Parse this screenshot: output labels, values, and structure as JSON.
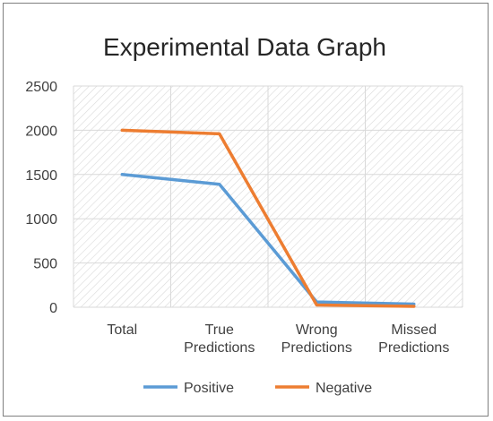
{
  "chart_data": {
    "type": "line",
    "title": "Experimental Data Graph",
    "xlabel": "",
    "ylabel": "",
    "categories": [
      [
        "Total"
      ],
      [
        "True",
        "Predictions"
      ],
      [
        "Wrong",
        "Predictions"
      ],
      [
        "Missed",
        "Predictions"
      ]
    ],
    "series": [
      {
        "name": "Positive",
        "color": "#5b9bd5",
        "values": [
          1500,
          1390,
          60,
          35
        ]
      },
      {
        "name": "Negative",
        "color": "#ed7d31",
        "values": [
          2000,
          1960,
          25,
          10
        ]
      }
    ],
    "ylim": [
      0,
      2500
    ],
    "yticks": [
      0,
      500,
      1000,
      1500,
      2000,
      2500
    ],
    "grid": true,
    "plot_background": "hatched",
    "legend": "bottom"
  }
}
